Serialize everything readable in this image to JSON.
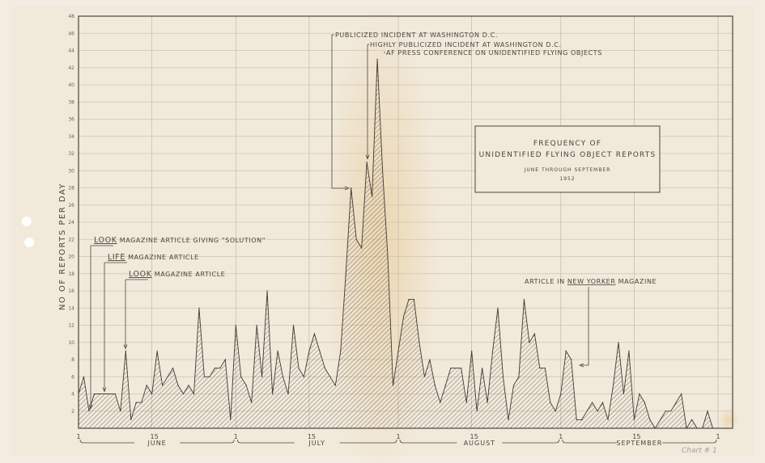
{
  "chart_data": {
    "type": "area",
    "title": "FREQUENCY OF",
    "title_line2": "UNIDENTIFIED FLYING OBJECT REPORTS",
    "subtitle": "JUNE THROUGH SEPTEMBER",
    "year": "1952",
    "ylabel": "NO OF REPORTS PER DAY",
    "xlabel": "",
    "ylim": [
      0,
      48
    ],
    "y_ticks": [
      2,
      4,
      6,
      8,
      10,
      12,
      14,
      16,
      18,
      20,
      22,
      24,
      26,
      28,
      30,
      32,
      34,
      36,
      38,
      40,
      42,
      44,
      46,
      48
    ],
    "x_tick_labels": [
      "1",
      "15",
      "1",
      "15",
      "1",
      "15",
      "1",
      "15",
      "1"
    ],
    "grid": true,
    "fill": "hatched",
    "colors": {
      "paper": "#f3ece0",
      "ink": "#4a4540",
      "grid": "#c9bfb0",
      "stain": "#e9c98f"
    },
    "months": [
      {
        "label": "JUNE",
        "days": 30,
        "values": [
          4,
          6,
          2,
          4,
          4,
          4,
          4,
          4,
          2,
          9,
          1,
          3,
          3,
          5,
          4,
          9,
          5,
          6,
          7,
          5,
          4,
          5,
          4,
          14,
          6,
          6,
          7,
          7,
          8,
          1
        ]
      },
      {
        "label": "JULY",
        "days": 31,
        "values": [
          12,
          6,
          5,
          3,
          12,
          6,
          16,
          4,
          9,
          6,
          4,
          12,
          7,
          6,
          9,
          11,
          9,
          7,
          6,
          5,
          9,
          18,
          28,
          22,
          21,
          31,
          27,
          43,
          30,
          20,
          5
        ]
      },
      {
        "label": "AUGUST",
        "days": 31,
        "values": [
          9,
          13,
          15,
          15,
          10,
          6,
          8,
          5,
          3,
          5,
          7,
          7,
          7,
          3,
          9,
          2,
          7,
          3,
          9,
          14,
          6,
          1,
          5,
          6,
          15,
          10,
          11,
          7,
          7,
          3,
          2
        ]
      },
      {
        "label": "SEPTEMBER",
        "days": 30,
        "values": [
          4,
          9,
          8,
          1,
          1,
          2,
          3,
          2,
          3,
          1,
          5,
          10,
          4,
          9,
          1,
          4,
          3,
          1,
          0,
          1,
          2,
          2,
          3,
          4,
          0,
          1,
          0,
          0,
          2,
          0
        ]
      }
    ],
    "annotations": [
      {
        "text_u": "LOOK",
        "text": " MAGAZINE ARTICLE GIVING \"SOLUTION\"",
        "month": 0,
        "day": 3
      },
      {
        "text_u": "LIFE",
        "text": " MAGAZINE ARTICLE",
        "month": 0,
        "day": 6
      },
      {
        "text_u": "LOOK",
        "text": " MAGAZINE ARTICLE",
        "month": 0,
        "day": 10
      },
      {
        "text_u": "",
        "text": "PUBLICIZED INCIDENT AT WASHINGTON D.C.",
        "month": 1,
        "day": 23
      },
      {
        "text_u": "",
        "text": "HIGHLY PUBLICIZED INCIDENT AT WASHINGTON D.C.",
        "month": 1,
        "day": 26
      },
      {
        "text_u": "",
        "text": "AF PRESS CONFERENCE ON UNIDENTIFIED FLYING OBJECTS",
        "month": 1,
        "day": 28
      },
      {
        "text_pre": "ARTICLE IN ",
        "text_u": "NEW YORKER",
        "text": " MAGAZINE",
        "month": 3,
        "day": 4
      }
    ],
    "handwritten_note": "Chart # 1"
  }
}
